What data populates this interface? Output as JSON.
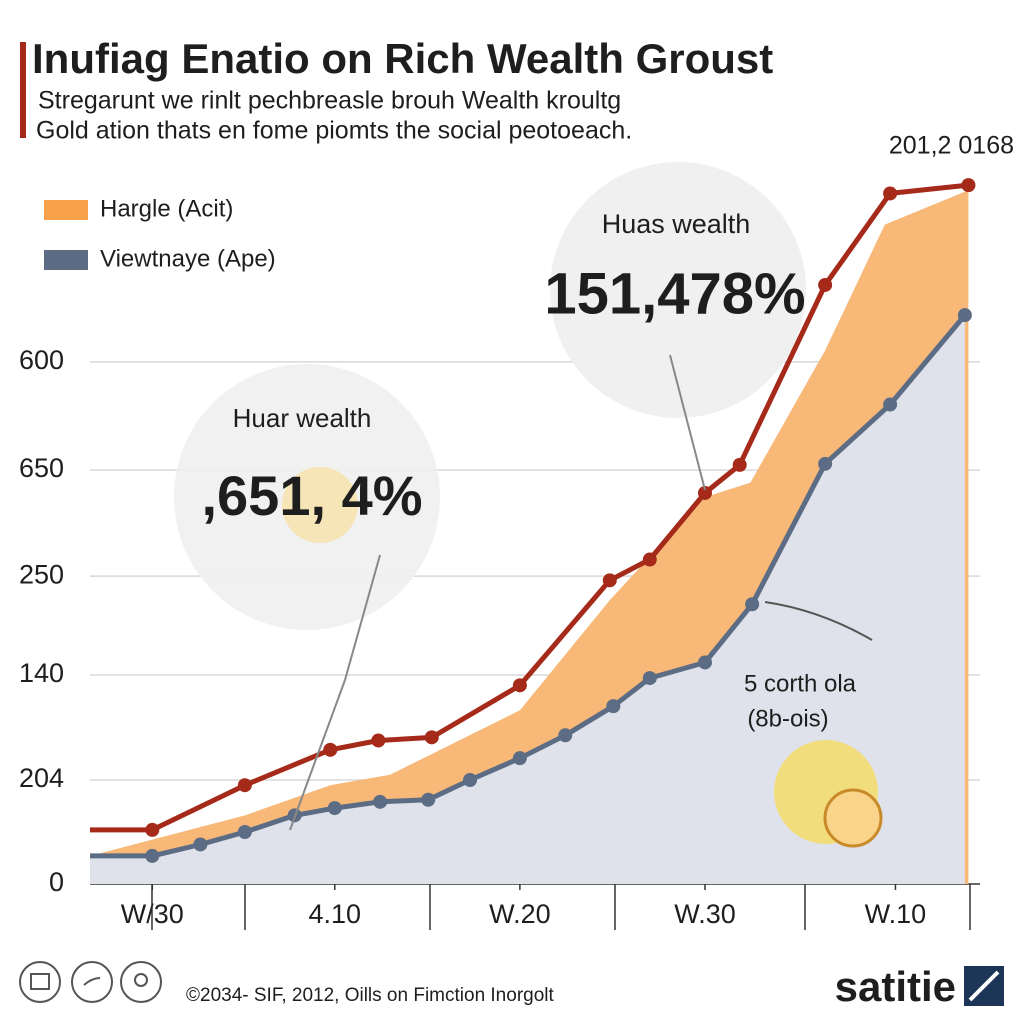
{
  "chart_data": {
    "type": "area",
    "title": "Inufiag Enatio on Rich Wealth Groust",
    "subtitle": [
      "Stregarunt we rinlt pechbreasle brouh Wealth kroultg",
      "Gold ation thats en fome piomts the social peotoeach."
    ],
    "corner_label": "201,2 0168",
    "xlim": [
      0,
      10
    ],
    "ylim": [
      0,
      7
    ],
    "xticks": [
      {
        "value": 0.7,
        "label": "W/30"
      },
      {
        "value": 2.75,
        "label": "4.10"
      },
      {
        "value": 4.83,
        "label": "W.20"
      },
      {
        "value": 6.91,
        "label": "W.30"
      },
      {
        "value": 9.05,
        "label": "W.10"
      }
    ],
    "yticks": [
      0,
      {
        "value": 1,
        "label": "204"
      },
      {
        "value": 2.01,
        "label": "140"
      },
      {
        "value": 2.96,
        "label": "250"
      },
      {
        "value": 3.98,
        "label": "650"
      },
      {
        "value": 5.02,
        "label": "600"
      }
    ],
    "grid": true,
    "series": [
      {
        "name": "Hargle (Acit)",
        "color": "#f8b878",
        "legend_color": "#f7a24a",
        "style": "area",
        "x": [
          0,
          1.74,
          2.7,
          3.37,
          4.83,
          5.84,
          6.91,
          7.42,
          8.26,
          8.93,
          9.87
        ],
        "values": [
          0.27,
          0.66,
          0.95,
          1.05,
          1.67,
          2.73,
          3.72,
          3.86,
          5.13,
          6.34,
          6.67
        ]
      },
      {
        "name": "Viewtnaye (Ape)",
        "color": "#5b6c84",
        "fill": "#dfe2ea",
        "legend_color": "#5b6c84",
        "style": "line-area",
        "x": [
          0,
          0.7,
          1.24,
          1.74,
          2.3,
          2.75,
          3.26,
          3.8,
          4.27,
          4.83,
          5.34,
          5.88,
          6.29,
          6.91,
          7.44,
          8.26,
          8.99,
          9.83
        ],
        "values": [
          0.27,
          0.27,
          0.38,
          0.5,
          0.66,
          0.73,
          0.79,
          0.81,
          1.0,
          1.21,
          1.43,
          1.71,
          1.98,
          2.13,
          2.69,
          4.04,
          4.61,
          5.47
        ]
      },
      {
        "color": "#a52a1a",
        "style": "line",
        "x": [
          0,
          0.7,
          1.74,
          2.7,
          3.24,
          3.84,
          4.83,
          5.84,
          6.29,
          6.91,
          7.3,
          8.26,
          8.99,
          9.87
        ],
        "values": [
          0.52,
          0.52,
          0.95,
          1.29,
          1.38,
          1.41,
          1.91,
          2.92,
          3.12,
          3.76,
          4.03,
          5.76,
          6.64,
          6.72
        ]
      }
    ],
    "annotations": [
      {
        "title": "Huar wealth",
        "text": ",651, 4%"
      },
      {
        "title": "Huas wealth",
        "text": "151,478%"
      },
      {
        "title": "5 corth ola",
        "text": "(8b-ois)"
      }
    ],
    "footer": "©2034- SIF, 2012, Oills on Fimction Inorgolt",
    "brand": "satitie"
  }
}
